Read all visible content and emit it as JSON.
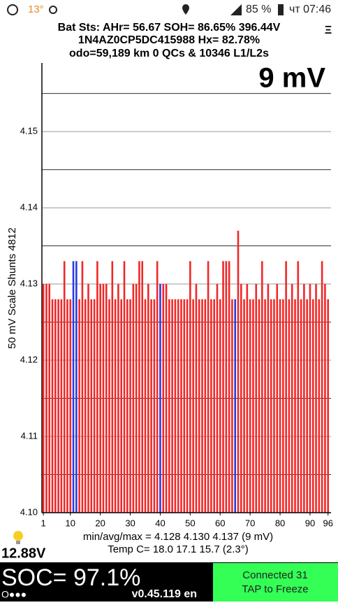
{
  "status_bar": {
    "temp": "13°",
    "battery": "85 %",
    "time": "чт 07:46"
  },
  "header": {
    "line1": "Bat Sts:  AHr= 56.67  SOH= 86.65%  396.44V",
    "line2": "1N4AZ0CP5DC415988   Hx= 82.78%",
    "line3": "odo=59,189 km 0 QCs & 10346 L1/L2s",
    "menu": "Ξ"
  },
  "chart_data": {
    "type": "bar",
    "annotation": "9 mV",
    "ylabel": "50 mV Scale   Shunts 4812",
    "x": [
      1,
      2,
      3,
      4,
      5,
      6,
      7,
      8,
      9,
      10,
      11,
      12,
      13,
      14,
      15,
      16,
      17,
      18,
      19,
      20,
      21,
      22,
      23,
      24,
      25,
      26,
      27,
      28,
      29,
      30,
      31,
      32,
      33,
      34,
      35,
      36,
      37,
      38,
      39,
      40,
      41,
      42,
      43,
      44,
      45,
      46,
      47,
      48,
      49,
      50,
      51,
      52,
      53,
      54,
      55,
      56,
      57,
      58,
      59,
      60,
      61,
      62,
      63,
      64,
      65,
      66,
      67,
      68,
      69,
      70,
      71,
      72,
      73,
      74,
      75,
      76,
      77,
      78,
      79,
      80,
      81,
      82,
      83,
      84,
      85,
      86,
      87,
      88,
      89,
      90,
      91,
      92,
      93,
      94,
      95,
      96
    ],
    "values": [
      4.13,
      4.13,
      4.13,
      4.128,
      4.128,
      4.128,
      4.128,
      4.133,
      4.128,
      4.128,
      4.133,
      4.133,
      4.128,
      4.133,
      4.128,
      4.13,
      4.128,
      4.128,
      4.133,
      4.13,
      4.13,
      4.13,
      4.128,
      4.133,
      4.128,
      4.13,
      4.128,
      4.133,
      4.128,
      4.128,
      4.13,
      4.13,
      4.133,
      4.133,
      4.128,
      4.13,
      4.128,
      4.128,
      4.133,
      4.13,
      4.13,
      4.13,
      4.128,
      4.128,
      4.128,
      4.128,
      4.128,
      4.128,
      4.128,
      4.133,
      4.128,
      4.13,
      4.128,
      4.128,
      4.128,
      4.133,
      4.128,
      4.128,
      4.13,
      4.128,
      4.133,
      4.133,
      4.133,
      4.128,
      4.128,
      4.137,
      4.13,
      4.128,
      4.13,
      4.128,
      4.128,
      4.13,
      4.128,
      4.133,
      4.128,
      4.13,
      4.128,
      4.128,
      4.13,
      4.128,
      4.128,
      4.133,
      4.128,
      4.13,
      4.128,
      4.133,
      4.128,
      4.13,
      4.128,
      4.13,
      4.128,
      4.13,
      4.128,
      4.133,
      4.13,
      4.128
    ],
    "color": "#f02828",
    "shunt_color": "#2a3ae0",
    "shunt_bars": [
      10,
      11,
      39,
      64
    ],
    "xlim": [
      0.5,
      97
    ],
    "xticks": [
      1,
      10,
      20,
      30,
      40,
      50,
      60,
      70,
      80,
      90,
      96
    ],
    "ylim": [
      4.1,
      4.159
    ],
    "yticks": [
      {
        "value": 4.1,
        "label": "4.10"
      },
      4.11,
      4.12,
      4.13,
      4.14,
      4.15
    ],
    "minor_yticks": [
      4.105,
      4.115,
      4.125,
      4.135,
      4.145,
      4.155
    ],
    "grid": true
  },
  "footer": {
    "stats": "min/avg/max = 4.128 4.130 4.137  (9 mV)",
    "temps": "Temp C= 18.0  17.1  15.7  (2.3°)",
    "voltage": "12.88V",
    "soc": "SOC= 97.1%",
    "dots": "O●●●",
    "version": "v0.45.119 en",
    "connected": "Connected 31",
    "tap": "TAP to Freeze"
  }
}
